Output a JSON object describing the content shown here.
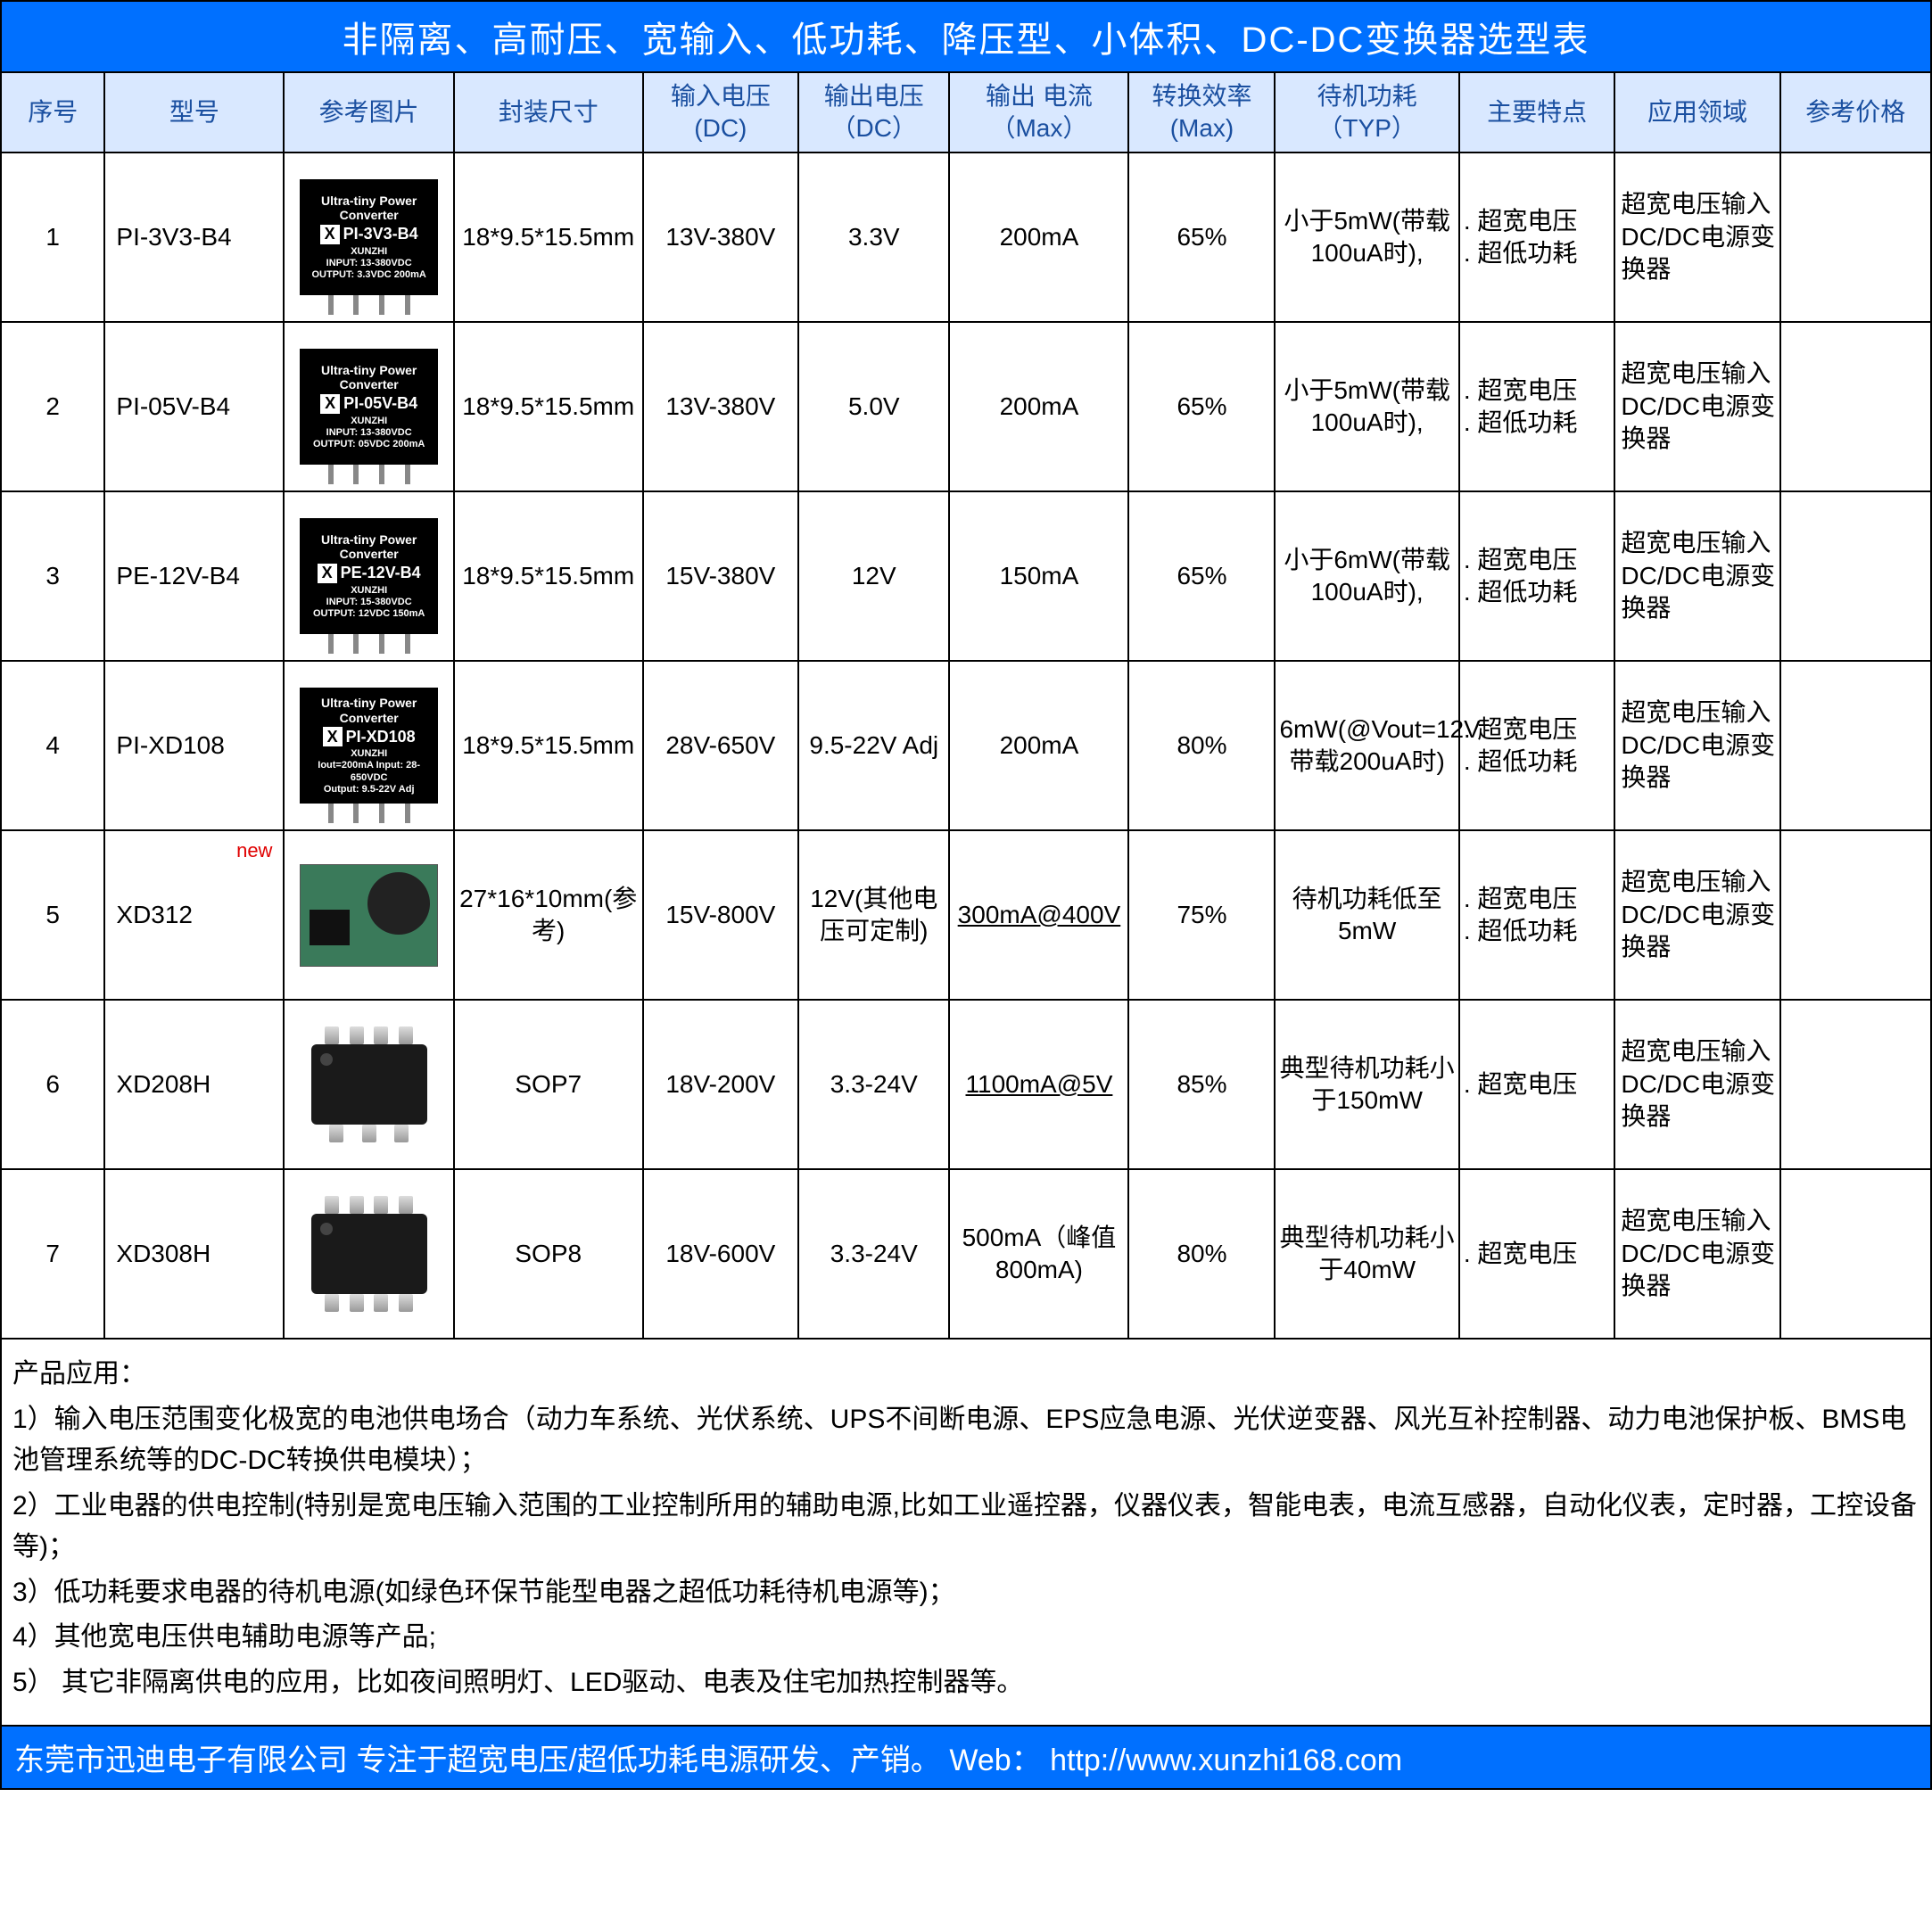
{
  "title": "非隔离、高耐压、宽输入、低功耗、降压型、小体积、DC-DC变换器选型表",
  "colors": {
    "header_bg": "#0070ff",
    "header_text": "#ffffff",
    "th_bg": "#d9e8ff",
    "th_text": "#1a4fa0",
    "border": "#000000",
    "new_tag": "#e00000"
  },
  "columns": [
    "序号",
    "型号",
    "参考图片",
    "封装尺寸",
    "输入电压(DC)",
    "输出电压（DC）",
    "输出 电流（Max）",
    "转换效率(Max)",
    "待机功耗（TYP）",
    "主要特点",
    "应用领域",
    "参考价格"
  ],
  "rows": [
    {
      "seq": "1",
      "model": "PI-3V3-B4",
      "img_type": "black",
      "img_model": "PI-3V3-B4",
      "img_l1": "INPUT: 13-380VDC",
      "img_l2": "OUTPUT: 3.3VDC 200mA",
      "pkg": "18*9.5*15.5mm",
      "vin": "13V-380V",
      "vout": "3.3V",
      "iout": "200mA",
      "iout_ul": false,
      "eff": "65%",
      "standby": "小于5mW(带载100uA时),",
      "feat": ". 超宽电压\n. 超低功耗",
      "app": "超宽电压输入DC/DC电源变换器",
      "price": "",
      "new": false
    },
    {
      "seq": "2",
      "model": "PI-05V-B4",
      "img_type": "black",
      "img_model": "PI-05V-B4",
      "img_l1": "INPUT: 13-380VDC",
      "img_l2": "OUTPUT: 05VDC 200mA",
      "pkg": "18*9.5*15.5mm",
      "vin": "13V-380V",
      "vout": "5.0V",
      "iout": "200mA",
      "iout_ul": false,
      "eff": "65%",
      "standby": "小于5mW(带载100uA时),",
      "feat": ". 超宽电压\n. 超低功耗",
      "app": "超宽电压输入DC/DC电源变换器",
      "price": "",
      "new": false
    },
    {
      "seq": "3",
      "model": "PE-12V-B4",
      "img_type": "black",
      "img_model": "PE-12V-B4",
      "img_l1": "INPUT: 15-380VDC",
      "img_l2": "OUTPUT: 12VDC 150mA",
      "pkg": "18*9.5*15.5mm",
      "vin": "15V-380V",
      "vout": "12V",
      "iout": "150mA",
      "iout_ul": false,
      "eff": "65%",
      "standby": "小于6mW(带载100uA时),",
      "feat": ". 超宽电压\n. 超低功耗",
      "app": "超宽电压输入DC/DC电源变换器",
      "price": "",
      "new": false
    },
    {
      "seq": "4",
      "model": "PI-XD108",
      "img_type": "black",
      "img_model": "PI-XD108",
      "img_l1": "Iout=200mA  Input: 28-650VDC",
      "img_l2": "Output: 9.5-22V Adj",
      "pkg": "18*9.5*15.5mm",
      "vin": "28V-650V",
      "vout": "9.5-22V Adj",
      "iout": "200mA",
      "iout_ul": false,
      "eff": "80%",
      "standby": "6mW(@Vout=12V带载200uA时)",
      "feat": ". 超宽电压\n. 超低功耗",
      "app": "超宽电压输入DC/DC电源变换器",
      "price": "",
      "new": false
    },
    {
      "seq": "5",
      "model": "XD312",
      "img_type": "board",
      "img_model": "",
      "img_l1": "",
      "img_l2": "",
      "pkg": "27*16*10mm(参考)",
      "vin": "15V-800V",
      "vout": "12V(其他电压可定制)",
      "iout": "300mA@400V",
      "iout_ul": true,
      "eff": "75%",
      "standby": "待机功耗低至5mW",
      "feat": ". 超宽电压\n. 超低功耗",
      "app": "超宽电压输入DC/DC电源变换器",
      "price": "",
      "new": true
    },
    {
      "seq": "6",
      "model": "XD208H",
      "img_type": "sop",
      "sop_legs": 7,
      "img_model": "",
      "img_l1": "",
      "img_l2": "",
      "pkg": "SOP7",
      "vin": "18V-200V",
      "vout": "3.3-24V",
      "iout": "1100mA@5V",
      "iout_ul": true,
      "eff": "85%",
      "standby": "典型待机功耗小于150mW",
      "feat": ". 超宽电压",
      "app": "超宽电压输入DC/DC电源变换器",
      "price": "",
      "new": false
    },
    {
      "seq": "7",
      "model": "XD308H",
      "img_type": "sop",
      "sop_legs": 8,
      "img_model": "",
      "img_l1": "",
      "img_l2": "",
      "pkg": "SOP8",
      "vin": "18V-600V",
      "vout": "3.3-24V",
      "iout": "500mA（峰值800mA)",
      "iout_ul": false,
      "eff": "80%",
      "standby": "典型待机功耗小于40mW",
      "feat": ". 超宽电压",
      "app": "超宽电压输入DC/DC电源变换器",
      "price": "",
      "new": false
    }
  ],
  "notes": {
    "heading": "产品应用：",
    "items": [
      "1）输入电压范围变化极宽的电池供电场合（动力车系统、光伏系统、UPS不间断电源、EPS应急电源、光伏逆变器、风光互补控制器、动力电池保护板、BMS电池管理系统等的DC-DC转换供电模块）；",
      "2）工业电器的供电控制(特别是宽电压输入范围的工业控制所用的辅助电源,比如工业遥控器，仪器仪表，智能电表，电流互感器，自动化仪表，定时器，工控设备等)；",
      "3）低功耗要求电器的待机电源(如绿色环保节能型电器之超低功耗待机电源等)；",
      "4）其他宽电压供电辅助电源等产品;",
      "5） 其它非隔离供电的应用，比如夜间照明灯、LED驱动、电表及住宅加热控制器等。"
    ]
  },
  "footer": {
    "text": "东莞市迅迪电子有限公司  专注于超宽电压/超低功耗电源研发、产销。 Web：",
    "url": "http://www.xunzhi168.com"
  },
  "chip_header": "Ultra-tiny Power Converter",
  "chip_brand": "XUNZHI",
  "new_label": "new"
}
